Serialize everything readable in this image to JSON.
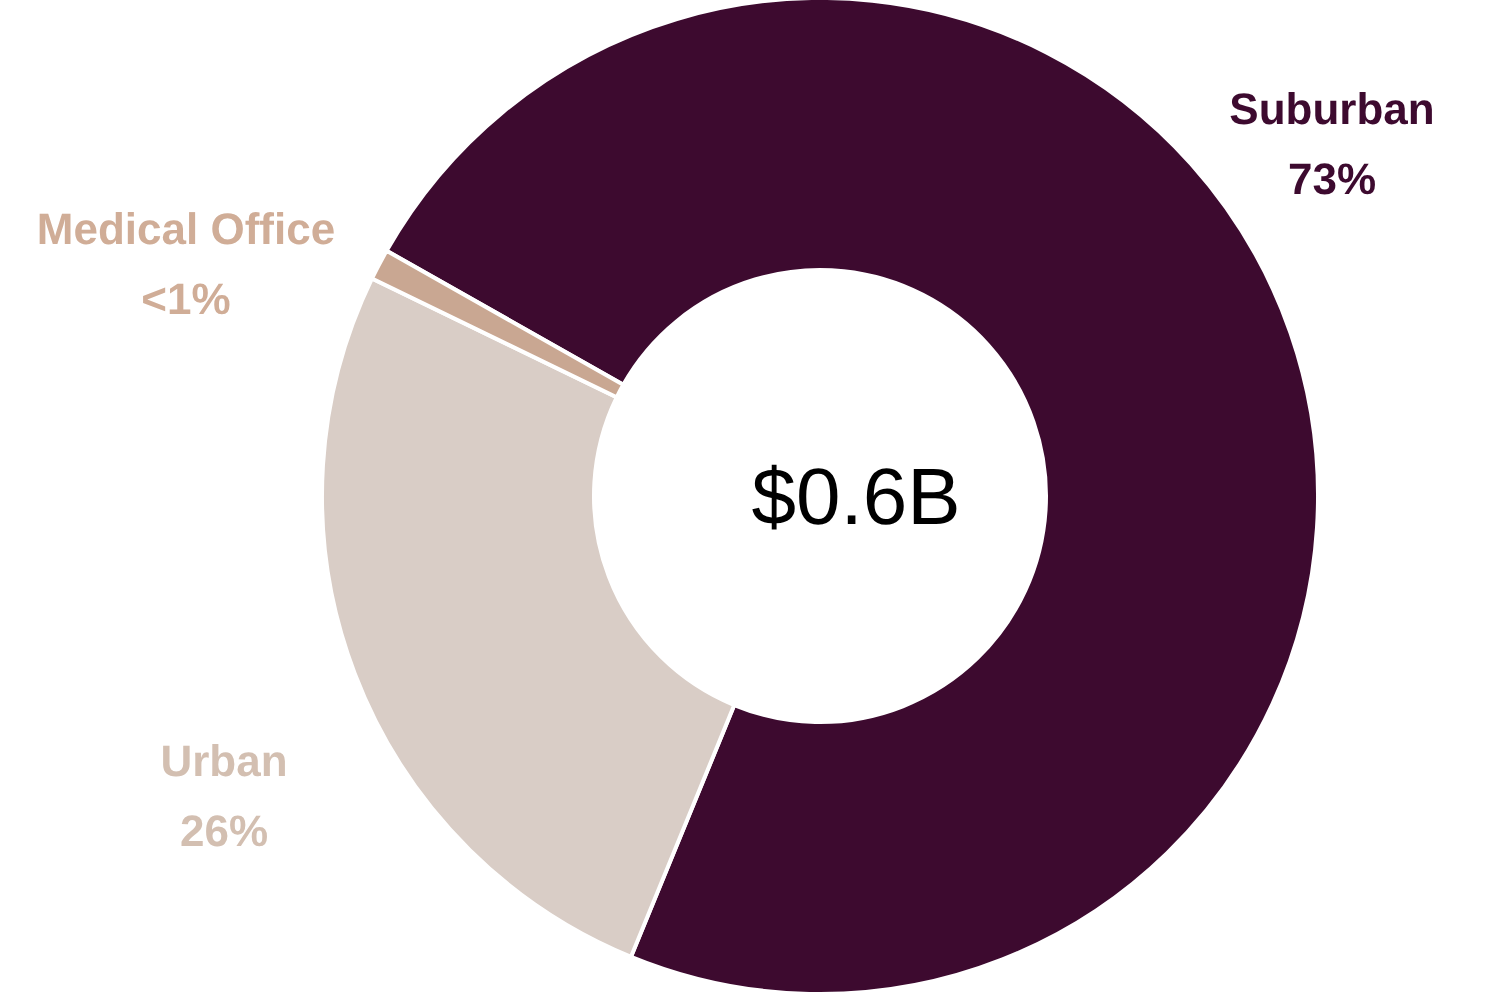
{
  "chart_data": {
    "type": "donut",
    "categories": [
      "Suburban",
      "Urban",
      "Medical Office"
    ],
    "values": [
      73,
      26,
      1
    ],
    "value_labels": [
      "73%",
      "26%",
      "<1%"
    ],
    "colors": [
      "#3d0a2f",
      "#d9cdc6",
      "#c9a792"
    ],
    "annotations": [
      "$0.6B"
    ]
  }
}
